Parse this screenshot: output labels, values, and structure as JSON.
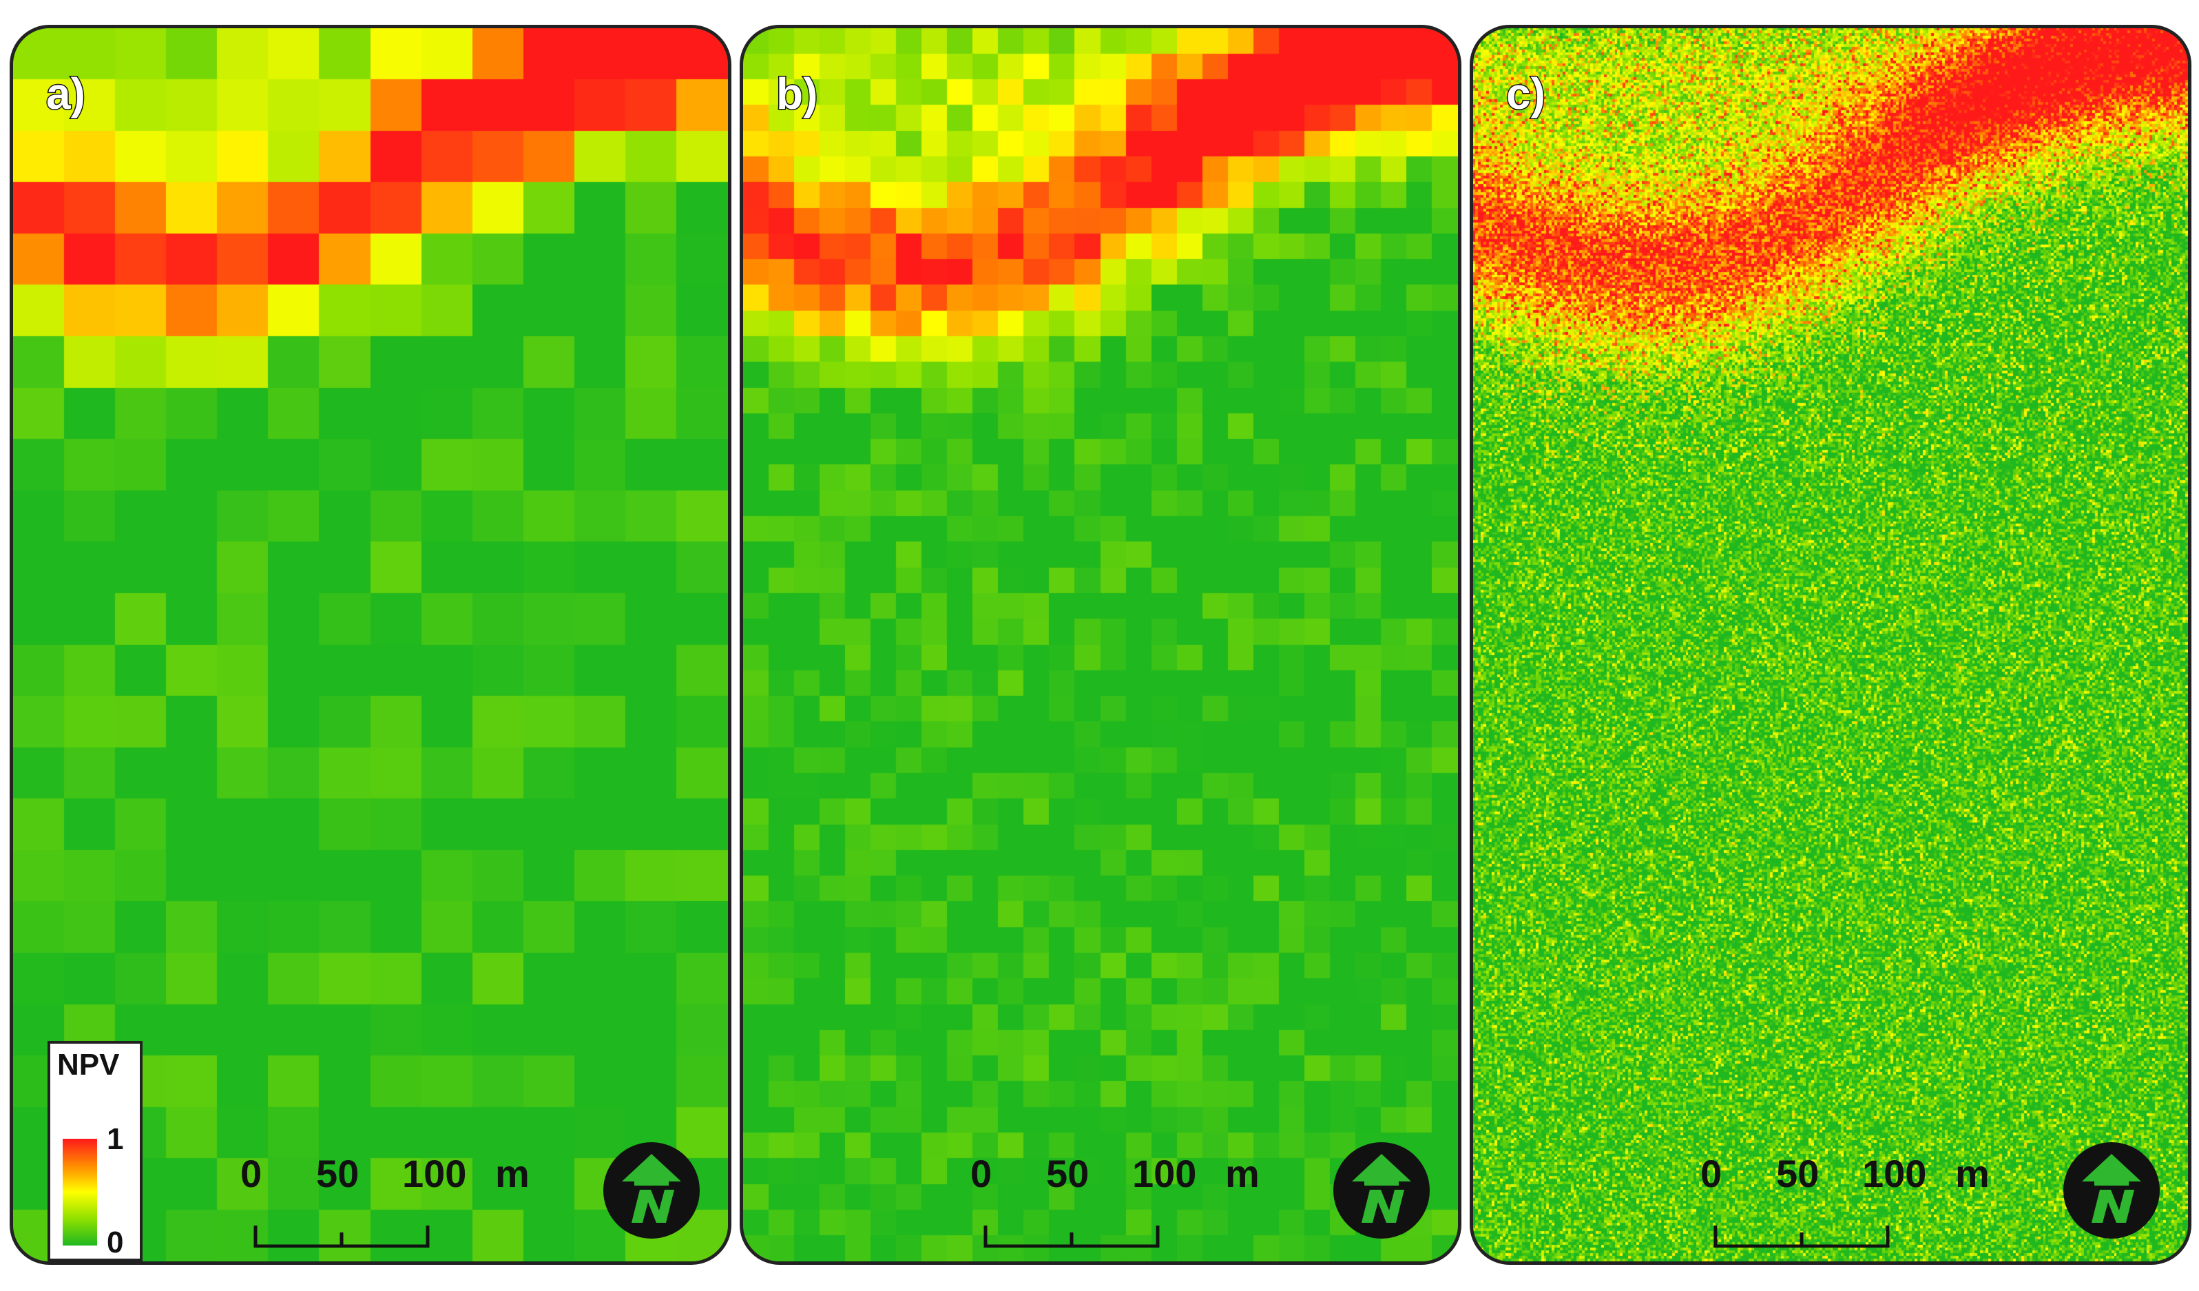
{
  "panels": [
    {
      "id": "a",
      "label": "a)",
      "grid": [
        14,
        24
      ],
      "seed": 11
    },
    {
      "id": "b",
      "label": "b)",
      "grid": [
        28,
        48
      ],
      "seed": 23
    },
    {
      "id": "c",
      "label": "c)",
      "grid": [
        262,
        450
      ],
      "seed": 37
    }
  ],
  "scalebar": {
    "ticks": [
      "0",
      "50",
      "100"
    ],
    "unit": "m"
  },
  "legend": {
    "title": "NPV",
    "max": "1",
    "min": "0"
  },
  "colors": {
    "ramp": [
      "#1fb81f",
      "#8fe000",
      "#ffff00",
      "#ff8a00",
      "#ff1a1a"
    ],
    "north_arrow_bg": "#111111",
    "north_arrow_fg": "#2fb82f"
  },
  "icons": {
    "north_arrow": "north-arrow-icon"
  }
}
